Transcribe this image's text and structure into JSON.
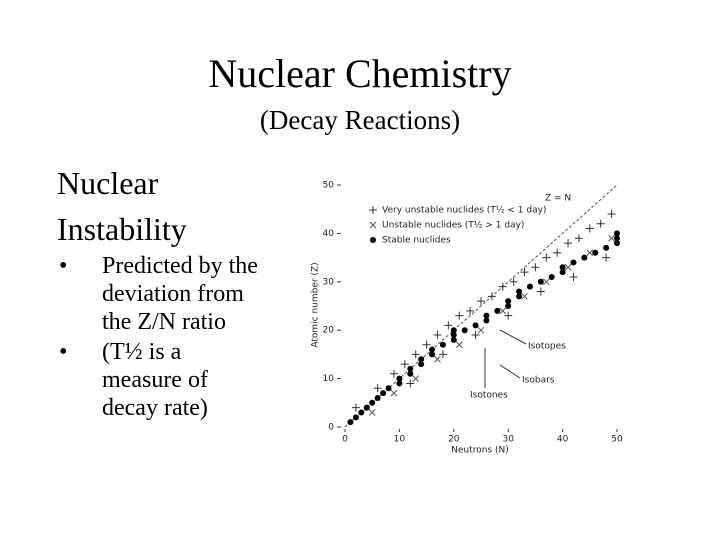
{
  "slide": {
    "title": "Nuclear Chemistry",
    "subtitle": "(Decay Reactions)",
    "heading": "Nuclear Instability",
    "bullets": [
      "Predicted by the deviation from the Z/N ratio",
      "(T½ is a measure of decay rate)"
    ]
  },
  "chart_data": {
    "type": "scatter",
    "xlabel": "Neutrons (N)",
    "ylabel": "Atomic number (Z)",
    "xlim": [
      0,
      50
    ],
    "ylim": [
      0,
      50
    ],
    "xticks": [
      0,
      10,
      20,
      30,
      40,
      50
    ],
    "yticks": [
      0,
      10,
      20,
      30,
      40,
      50
    ],
    "annotations": [
      "Z = N",
      "Isotopes",
      "Isobars",
      "Isotones"
    ],
    "series": [
      {
        "name": "Very unstable nuclides (T½ < 1 day)",
        "color": "#333333",
        "marker": "plus",
        "x": [
          2,
          6,
          9,
          11,
          13,
          15,
          17,
          19,
          21,
          23,
          25,
          27,
          29,
          31,
          33,
          35,
          37,
          39,
          41,
          43,
          45,
          47,
          49,
          12,
          18,
          24,
          30,
          36,
          42,
          48
        ],
        "values": [
          4,
          8,
          11,
          13,
          15,
          17,
          19,
          21,
          23,
          24,
          26,
          27,
          29,
          30,
          32,
          33,
          35,
          36,
          38,
          39,
          41,
          42,
          44,
          9,
          15,
          19,
          23,
          28,
          31,
          35
        ]
      },
      {
        "name": "Unstable nuclides (T½ > 1 day)",
        "color": "#555555",
        "marker": "x",
        "x": [
          5,
          9,
          13,
          17,
          21,
          25,
          29,
          33,
          37,
          41,
          45,
          49
        ],
        "values": [
          3,
          7,
          10,
          14,
          17,
          20,
          24,
          27,
          30,
          33,
          36,
          39
        ]
      },
      {
        "name": "Stable nuclides",
        "color": "#000000",
        "marker": "dot",
        "x": [
          1,
          2,
          3,
          4,
          5,
          6,
          7,
          8,
          10,
          10,
          12,
          12,
          14,
          14,
          16,
          16,
          18,
          20,
          20,
          20,
          22,
          24,
          26,
          26,
          28,
          30,
          30,
          32,
          32,
          34,
          36,
          38,
          40,
          40,
          42,
          44,
          46,
          48,
          50,
          50,
          50
        ],
        "values": [
          1,
          2,
          3,
          4,
          5,
          6,
          7,
          8,
          9,
          10,
          11,
          12,
          13,
          14,
          15,
          16,
          17,
          18,
          19,
          20,
          20,
          21,
          22,
          23,
          24,
          25,
          26,
          27,
          28,
          29,
          30,
          31,
          32,
          33,
          34,
          35,
          36,
          37,
          38,
          39,
          40
        ]
      }
    ]
  }
}
